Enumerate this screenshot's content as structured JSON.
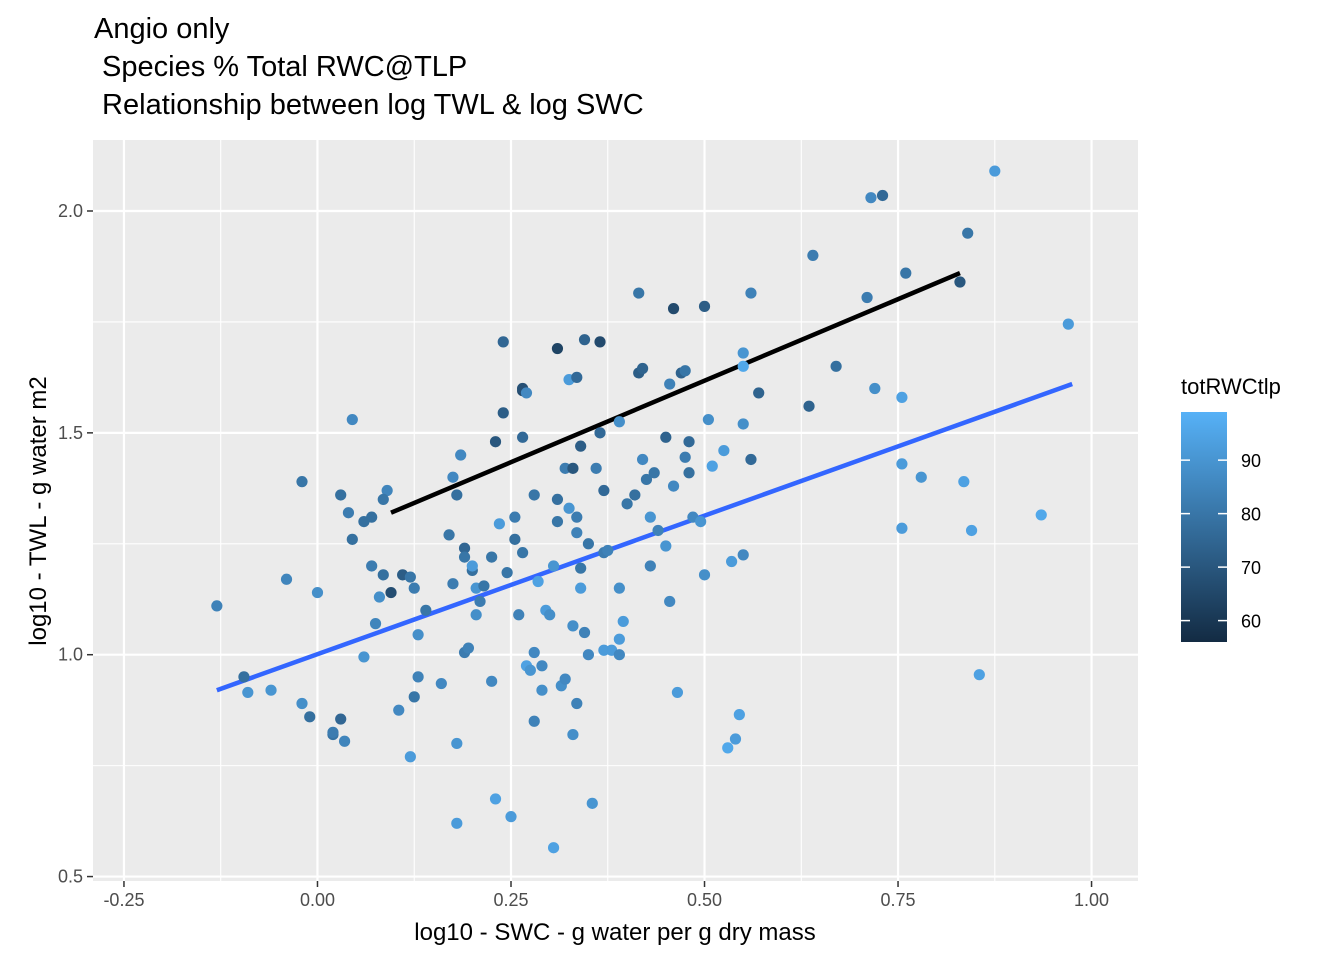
{
  "chart_data": {
    "type": "scatter",
    "title_lines": [
      "Angio only",
      " Species % Total RWC@TLP",
      " Relationship between log TWL & log SWC"
    ],
    "xlabel": "log10 - SWC - g water per g dry mass",
    "ylabel": "log10 - TWL - g water m2",
    "xlim": [
      -0.29,
      1.06
    ],
    "ylim": [
      0.49,
      2.16
    ],
    "xticks": [
      -0.25,
      0,
      0.25,
      0.5,
      0.75,
      1.0
    ],
    "xtick_labels": [
      "-0.25",
      "0.00",
      "0.25",
      "0.50",
      "0.75",
      "1.00"
    ],
    "yticks": [
      0.5,
      1.0,
      1.5,
      2.0
    ],
    "ytick_labels": [
      "0.5",
      "1.0",
      "1.5",
      "2.0"
    ],
    "grid": true,
    "legend": {
      "title": "totRWCtlp",
      "position": "right",
      "range": [
        56,
        99
      ],
      "breaks": [
        60,
        70,
        80,
        90
      ],
      "break_labels": [
        "60",
        "70",
        "80",
        "90"
      ],
      "color_low": "#132b43",
      "color_high": "#56b1f7"
    },
    "lines": [
      {
        "x": [
          0.095,
          0.83
        ],
        "y": [
          1.32,
          1.86
        ],
        "color": "#000000"
      },
      {
        "x": [
          -0.13,
          0.975
        ],
        "y": [
          0.92,
          1.61
        ],
        "color": "#3366ff"
      }
    ],
    "points": [
      [
        -0.13,
        1.11,
        84
      ],
      [
        -0.095,
        0.95,
        78
      ],
      [
        -0.09,
        0.915,
        90
      ],
      [
        -0.06,
        0.92,
        90
      ],
      [
        -0.04,
        1.17,
        85
      ],
      [
        -0.02,
        1.39,
        80
      ],
      [
        -0.02,
        0.89,
        88
      ],
      [
        -0.01,
        0.86,
        78
      ],
      [
        0.0,
        1.14,
        88
      ],
      [
        0.02,
        0.82,
        79
      ],
      [
        0.02,
        0.825,
        82
      ],
      [
        0.03,
        0.855,
        75
      ],
      [
        0.035,
        0.805,
        85
      ],
      [
        0.03,
        1.36,
        78
      ],
      [
        0.04,
        1.32,
        82
      ],
      [
        0.045,
        1.26,
        78
      ],
      [
        0.045,
        1.53,
        86
      ],
      [
        0.06,
        1.3,
        78
      ],
      [
        0.07,
        1.31,
        78
      ],
      [
        0.06,
        0.995,
        90
      ],
      [
        0.07,
        1.2,
        82
      ],
      [
        0.075,
        1.07,
        85
      ],
      [
        0.08,
        1.13,
        88
      ],
      [
        0.085,
        1.18,
        78
      ],
      [
        0.09,
        1.37,
        85
      ],
      [
        0.085,
        1.35,
        80
      ],
      [
        0.095,
        1.14,
        67
      ],
      [
        0.105,
        0.875,
        86
      ],
      [
        0.11,
        1.18,
        72
      ],
      [
        0.12,
        1.175,
        80
      ],
      [
        0.12,
        0.77,
        92
      ],
      [
        0.125,
        1.15,
        82
      ],
      [
        0.125,
        0.905,
        80
      ],
      [
        0.13,
        0.95,
        84
      ],
      [
        0.13,
        1.045,
        88
      ],
      [
        0.14,
        1.1,
        80
      ],
      [
        0.16,
        0.935,
        86
      ],
      [
        0.17,
        1.27,
        80
      ],
      [
        0.175,
        1.16,
        82
      ],
      [
        0.175,
        1.4,
        86
      ],
      [
        0.18,
        1.36,
        78
      ],
      [
        0.18,
        0.8,
        90
      ],
      [
        0.18,
        0.62,
        92
      ],
      [
        0.19,
        1.24,
        75
      ],
      [
        0.185,
        1.45,
        86
      ],
      [
        0.19,
        1.22,
        80
      ],
      [
        0.19,
        1.005,
        82
      ],
      [
        0.195,
        1.015,
        84
      ],
      [
        0.2,
        1.19,
        78
      ],
      [
        0.2,
        1.2,
        92
      ],
      [
        0.205,
        1.15,
        90
      ],
      [
        0.205,
        1.09,
        88
      ],
      [
        0.21,
        1.12,
        82
      ],
      [
        0.215,
        1.155,
        80
      ],
      [
        0.225,
        0.94,
        86
      ],
      [
        0.225,
        1.22,
        80
      ],
      [
        0.23,
        1.48,
        70
      ],
      [
        0.23,
        0.675,
        94
      ],
      [
        0.235,
        1.295,
        92
      ],
      [
        0.24,
        1.705,
        75
      ],
      [
        0.24,
        1.545,
        72
      ],
      [
        0.245,
        1.185,
        80
      ],
      [
        0.25,
        0.635,
        92
      ],
      [
        0.255,
        1.26,
        78
      ],
      [
        0.255,
        1.31,
        82
      ],
      [
        0.26,
        1.09,
        84
      ],
      [
        0.265,
        1.23,
        80
      ],
      [
        0.265,
        1.49,
        76
      ],
      [
        0.265,
        1.595,
        66
      ],
      [
        0.265,
        1.6,
        68
      ],
      [
        0.27,
        1.59,
        86
      ],
      [
        0.27,
        0.975,
        94
      ],
      [
        0.275,
        0.965,
        90
      ],
      [
        0.28,
        1.36,
        80
      ],
      [
        0.28,
        1.005,
        86
      ],
      [
        0.28,
        0.85,
        84
      ],
      [
        0.285,
        1.165,
        94
      ],
      [
        0.29,
        0.92,
        88
      ],
      [
        0.29,
        0.975,
        86
      ],
      [
        0.295,
        1.1,
        92
      ],
      [
        0.3,
        1.09,
        88
      ],
      [
        0.305,
        0.565,
        94
      ],
      [
        0.305,
        1.2,
        90
      ],
      [
        0.31,
        1.35,
        78
      ],
      [
        0.31,
        1.3,
        80
      ],
      [
        0.31,
        1.69,
        64
      ],
      [
        0.315,
        0.93,
        88
      ],
      [
        0.32,
        0.945,
        86
      ],
      [
        0.32,
        1.42,
        82
      ],
      [
        0.325,
        1.62,
        92
      ],
      [
        0.325,
        1.33,
        90
      ],
      [
        0.33,
        1.42,
        70
      ],
      [
        0.33,
        0.82,
        88
      ],
      [
        0.33,
        1.065,
        88
      ],
      [
        0.335,
        1.275,
        84
      ],
      [
        0.335,
        1.31,
        82
      ],
      [
        0.335,
        0.89,
        84
      ],
      [
        0.335,
        1.625,
        76
      ],
      [
        0.34,
        1.47,
        72
      ],
      [
        0.34,
        1.195,
        80
      ],
      [
        0.34,
        1.15,
        92
      ],
      [
        0.345,
        1.71,
        74
      ],
      [
        0.345,
        1.05,
        84
      ],
      [
        0.35,
        1.25,
        80
      ],
      [
        0.35,
        1.0,
        86
      ],
      [
        0.355,
        0.665,
        90
      ],
      [
        0.36,
        1.42,
        82
      ],
      [
        0.365,
        1.5,
        76
      ],
      [
        0.365,
        1.705,
        66
      ],
      [
        0.37,
        1.37,
        76
      ],
      [
        0.37,
        1.23,
        82
      ],
      [
        0.37,
        1.01,
        92
      ],
      [
        0.375,
        1.235,
        84
      ],
      [
        0.38,
        1.01,
        92
      ],
      [
        0.39,
        1.15,
        88
      ],
      [
        0.39,
        1.525,
        88
      ],
      [
        0.39,
        1.0,
        86
      ],
      [
        0.39,
        1.035,
        92
      ],
      [
        0.395,
        1.075,
        92
      ],
      [
        0.4,
        1.34,
        80
      ],
      [
        0.41,
        1.36,
        78
      ],
      [
        0.415,
        1.635,
        72
      ],
      [
        0.415,
        1.815,
        80
      ],
      [
        0.42,
        1.645,
        74
      ],
      [
        0.42,
        1.44,
        86
      ],
      [
        0.425,
        1.395,
        80
      ],
      [
        0.43,
        1.2,
        84
      ],
      [
        0.43,
        1.31,
        90
      ],
      [
        0.435,
        1.41,
        80
      ],
      [
        0.44,
        1.28,
        84
      ],
      [
        0.45,
        1.49,
        74
      ],
      [
        0.45,
        1.245,
        90
      ],
      [
        0.455,
        1.61,
        84
      ],
      [
        0.455,
        1.12,
        86
      ],
      [
        0.46,
        1.78,
        66
      ],
      [
        0.46,
        1.38,
        86
      ],
      [
        0.465,
        0.915,
        92
      ],
      [
        0.47,
        1.635,
        74
      ],
      [
        0.475,
        1.64,
        80
      ],
      [
        0.475,
        1.445,
        82
      ],
      [
        0.48,
        1.41,
        78
      ],
      [
        0.48,
        1.48,
        76
      ],
      [
        0.485,
        1.31,
        86
      ],
      [
        0.495,
        1.3,
        90
      ],
      [
        0.5,
        1.785,
        72
      ],
      [
        0.5,
        1.18,
        88
      ],
      [
        0.505,
        1.53,
        88
      ],
      [
        0.51,
        1.425,
        94
      ],
      [
        0.525,
        1.46,
        92
      ],
      [
        0.53,
        0.79,
        96
      ],
      [
        0.535,
        1.21,
        92
      ],
      [
        0.54,
        0.81,
        92
      ],
      [
        0.545,
        0.865,
        94
      ],
      [
        0.55,
        1.225,
        86
      ],
      [
        0.55,
        1.52,
        88
      ],
      [
        0.55,
        1.68,
        90
      ],
      [
        0.55,
        1.65,
        96
      ],
      [
        0.56,
        1.44,
        76
      ],
      [
        0.56,
        1.815,
        84
      ],
      [
        0.57,
        1.59,
        74
      ],
      [
        0.635,
        1.56,
        74
      ],
      [
        0.64,
        1.9,
        82
      ],
      [
        0.67,
        1.65,
        78
      ],
      [
        0.71,
        1.805,
        82
      ],
      [
        0.715,
        2.03,
        86
      ],
      [
        0.72,
        1.6,
        88
      ],
      [
        0.73,
        2.035,
        76
      ],
      [
        0.755,
        1.58,
        94
      ],
      [
        0.755,
        1.43,
        92
      ],
      [
        0.755,
        1.285,
        92
      ],
      [
        0.76,
        1.86,
        80
      ],
      [
        0.78,
        1.4,
        90
      ],
      [
        0.83,
        1.84,
        70
      ],
      [
        0.835,
        1.39,
        94
      ],
      [
        0.84,
        1.95,
        80
      ],
      [
        0.845,
        1.28,
        94
      ],
      [
        0.855,
        0.955,
        94
      ],
      [
        0.875,
        2.09,
        92
      ],
      [
        0.935,
        1.315,
        96
      ],
      [
        0.97,
        1.745,
        92
      ]
    ]
  }
}
